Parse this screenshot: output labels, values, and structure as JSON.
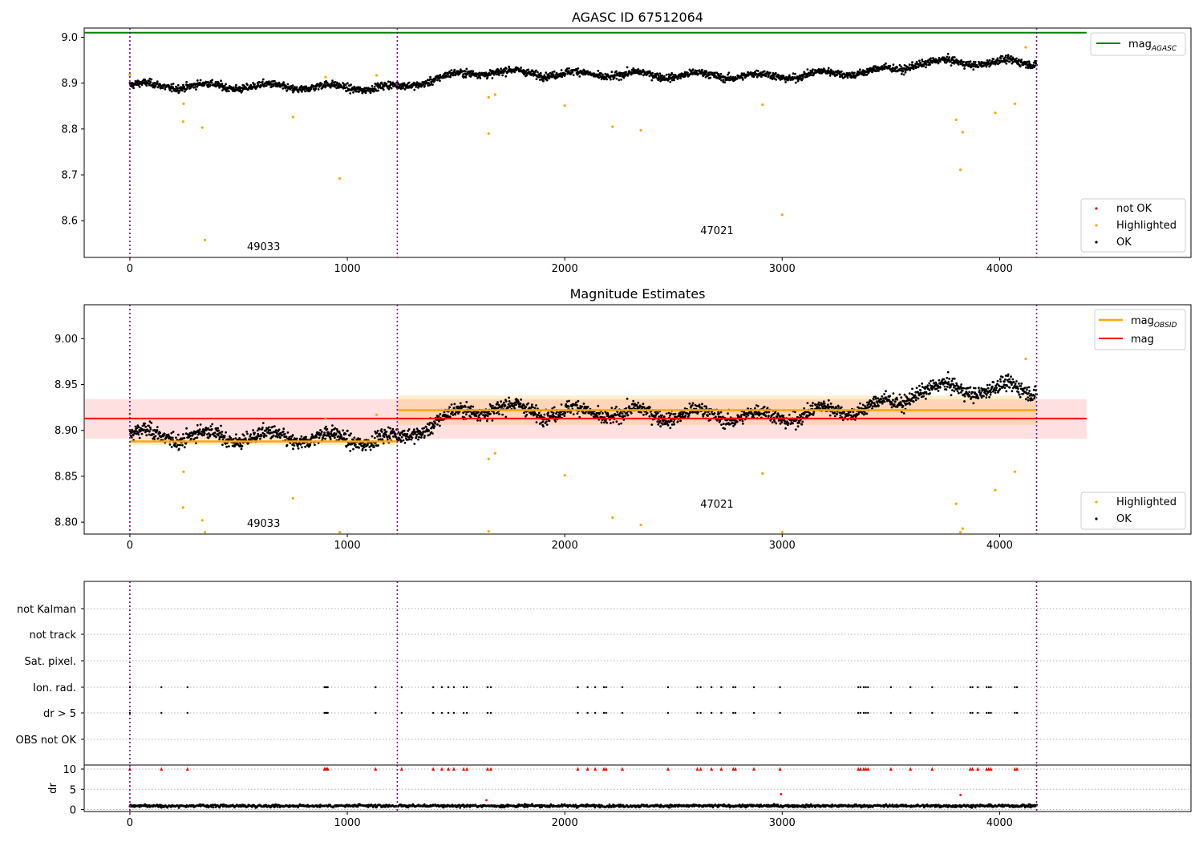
{
  "chart_data": [
    {
      "type": "scatter",
      "title": "AGASC ID 67512064",
      "xlim": [
        -210,
        4880
      ],
      "ylim": [
        8.52,
        9.02
      ],
      "xticks": [
        0,
        1000,
        2000,
        3000,
        4000
      ],
      "yticks": [
        8.6,
        8.7,
        8.8,
        8.9,
        9.0
      ],
      "ytick_labels": [
        "8.6",
        "8.7",
        "8.8",
        "8.9",
        "9.0"
      ],
      "obs_boundaries": [
        0,
        1230,
        4170
      ],
      "obs_labels": [
        {
          "text": "49033",
          "x": 615,
          "y": 8.536
        },
        {
          "text": "47021",
          "x": 2700,
          "y": 8.571
        }
      ],
      "reference_line": {
        "name": "mag_AGASC",
        "y": 9.01,
        "x_range": [
          -210,
          4400
        ],
        "color": "#008000"
      },
      "series_colors": {
        "not OK": "#ff0000",
        "Highlighted": "#ffa500",
        "OK": "#000000"
      },
      "ok_trend": [
        {
          "x": 0,
          "y": 8.895
        },
        {
          "x": 1230,
          "y": 8.89
        },
        {
          "x": 1360,
          "y": 8.905
        },
        {
          "x": 1600,
          "y": 8.925
        },
        {
          "x": 2000,
          "y": 8.92
        },
        {
          "x": 3000,
          "y": 8.915
        },
        {
          "x": 3550,
          "y": 8.93
        },
        {
          "x": 3610,
          "y": 8.945
        },
        {
          "x": 4170,
          "y": 8.945
        }
      ],
      "highlighted_points": [
        {
          "x": 0,
          "y": 8.918
        },
        {
          "x": 247,
          "y": 8.855
        },
        {
          "x": 245,
          "y": 8.816
        },
        {
          "x": 333,
          "y": 8.803
        },
        {
          "x": 345,
          "y": 8.558
        },
        {
          "x": 750,
          "y": 8.826
        },
        {
          "x": 900,
          "y": 8.913
        },
        {
          "x": 965,
          "y": 8.692
        },
        {
          "x": 1135,
          "y": 8.917
        },
        {
          "x": 1650,
          "y": 8.869
        },
        {
          "x": 1650,
          "y": 8.79
        },
        {
          "x": 1680,
          "y": 8.875
        },
        {
          "x": 2000,
          "y": 8.851
        },
        {
          "x": 2220,
          "y": 8.805
        },
        {
          "x": 2350,
          "y": 8.797
        },
        {
          "x": 2910,
          "y": 8.853
        },
        {
          "x": 3000,
          "y": 8.613
        },
        {
          "x": 3800,
          "y": 8.82
        },
        {
          "x": 3820,
          "y": 8.711
        },
        {
          "x": 3830,
          "y": 8.793
        },
        {
          "x": 3980,
          "y": 8.835
        },
        {
          "x": 4070,
          "y": 8.855
        },
        {
          "x": 4120,
          "y": 8.978
        }
      ],
      "legends": [
        {
          "position": "top-right",
          "entries": [
            "mag_AGASC"
          ]
        },
        {
          "position": "bottom-right",
          "entries": [
            "not OK",
            "Highlighted",
            "OK"
          ]
        }
      ]
    },
    {
      "type": "scatter",
      "title": "Magnitude Estimates",
      "xlim": [
        -210,
        4880
      ],
      "ylim": [
        8.787,
        9.037
      ],
      "xticks": [
        0,
        1000,
        2000,
        3000,
        4000
      ],
      "yticks": [
        8.8,
        8.85,
        8.9,
        8.95,
        9.0
      ],
      "ytick_labels": [
        "8.80",
        "8.85",
        "8.90",
        "8.95",
        "9.00"
      ],
      "obs_boundaries": [
        0,
        1230,
        4170
      ],
      "obs_labels": [
        {
          "text": "49033",
          "x": 615,
          "y": 8.795
        },
        {
          "text": "47021",
          "x": 2700,
          "y": 8.816
        }
      ],
      "mag_line": {
        "name": "mag",
        "y": 8.913,
        "band": [
          8.891,
          8.934
        ],
        "x_range": [
          -210,
          4400
        ],
        "color": "#ff0000"
      },
      "obsid_segments": [
        {
          "name": "49033",
          "x_range": [
            0,
            1230
          ],
          "y": 8.888,
          "band": [
            8.884,
            8.892
          ]
        },
        {
          "name": "47021",
          "x_range": [
            1230,
            4170
          ],
          "y": 8.922,
          "band": [
            8.906,
            8.938
          ]
        }
      ],
      "highlighted_points": [
        {
          "x": 0,
          "y": 8.918
        },
        {
          "x": 247,
          "y": 8.855
        },
        {
          "x": 245,
          "y": 8.816
        },
        {
          "x": 333,
          "y": 8.802
        },
        {
          "x": 345,
          "y": 8.789
        },
        {
          "x": 750,
          "y": 8.826
        },
        {
          "x": 900,
          "y": 8.913
        },
        {
          "x": 965,
          "y": 8.789
        },
        {
          "x": 1135,
          "y": 8.917
        },
        {
          "x": 1650,
          "y": 8.869
        },
        {
          "x": 1650,
          "y": 8.79
        },
        {
          "x": 1680,
          "y": 8.875
        },
        {
          "x": 2000,
          "y": 8.851
        },
        {
          "x": 2220,
          "y": 8.805
        },
        {
          "x": 2350,
          "y": 8.797
        },
        {
          "x": 2910,
          "y": 8.853
        },
        {
          "x": 3000,
          "y": 8.789
        },
        {
          "x": 3800,
          "y": 8.82
        },
        {
          "x": 3820,
          "y": 8.789
        },
        {
          "x": 3830,
          "y": 8.793
        },
        {
          "x": 3980,
          "y": 8.835
        },
        {
          "x": 4070,
          "y": 8.855
        },
        {
          "x": 4120,
          "y": 8.978
        }
      ],
      "legends": [
        {
          "position": "top-right",
          "entries": [
            "mag_OBSID",
            "mag"
          ]
        },
        {
          "position": "bottom-right",
          "entries": [
            "Highlighted",
            "OK"
          ]
        }
      ],
      "series_colors": {
        "Highlighted": "#ffa500",
        "OK": "#000000",
        "mag_OBSID": "#ffa500",
        "mag": "#ff0000"
      }
    },
    {
      "type": "scatter",
      "title": "",
      "xlim": [
        -210,
        4880
      ],
      "xticks": [
        0,
        1000,
        2000,
        3000,
        4000
      ],
      "flag_rows": [
        "not Kalman",
        "not track",
        "Sat. pixel.",
        "Ion. rad.",
        "dr > 5",
        "OBS not OK"
      ],
      "obs_boundaries": [
        0,
        1230,
        4170
      ],
      "flag_events_x": [
        0,
        145,
        265,
        895,
        900,
        905,
        910,
        1130,
        1250,
        1395,
        1435,
        1465,
        1490,
        1535,
        1550,
        1645,
        1660,
        2060,
        2105,
        2140,
        2180,
        2190,
        2265,
        2475,
        2610,
        2625,
        2675,
        2720,
        2775,
        2785,
        2870,
        2990,
        3350,
        3360,
        3375,
        3385,
        3395,
        3500,
        3590,
        3690,
        3865,
        3875,
        3900,
        3940,
        3950,
        3960,
        4070,
        4080
      ],
      "dr_axis": {
        "ylabel": "dr",
        "ylim": [
          -0.5,
          11
        ],
        "yticks": [
          0,
          5,
          10
        ],
        "ytick_labels": [
          "0",
          "5",
          "10"
        ],
        "baseline_mean": 0.9
      },
      "dr_outliers": [
        {
          "x": 1640,
          "y": 2.3
        },
        {
          "x": 2995,
          "y": 3.8
        },
        {
          "x": 3820,
          "y": 3.6
        }
      ],
      "clipped_marker_y": 10
    }
  ]
}
